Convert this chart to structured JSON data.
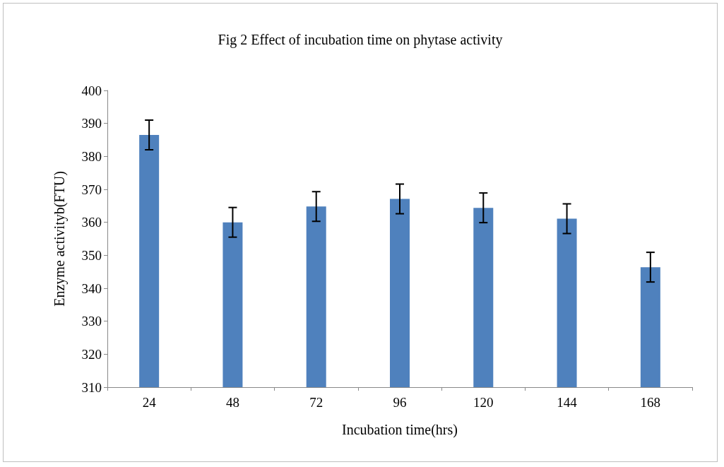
{
  "chart_data": {
    "type": "bar",
    "title": "Fig 2 Effect of incubation time on phytase activity",
    "xlabel": "Incubation time(hrs)",
    "ylabel": "Enzyme activityb(FTU)",
    "categories": [
      "24",
      "48",
      "72",
      "96",
      "120",
      "144",
      "168"
    ],
    "values": [
      386.5,
      360,
      364.8,
      367.1,
      364.4,
      361.1,
      346.4
    ],
    "errors": [
      4.5,
      4.5,
      4.5,
      4.5,
      4.5,
      4.5,
      4.5
    ],
    "color": "#4f81bd",
    "ylim": [
      310,
      400
    ],
    "yticks": [
      310,
      320,
      330,
      340,
      350,
      360,
      370,
      380,
      390,
      400
    ],
    "grid": false
  }
}
